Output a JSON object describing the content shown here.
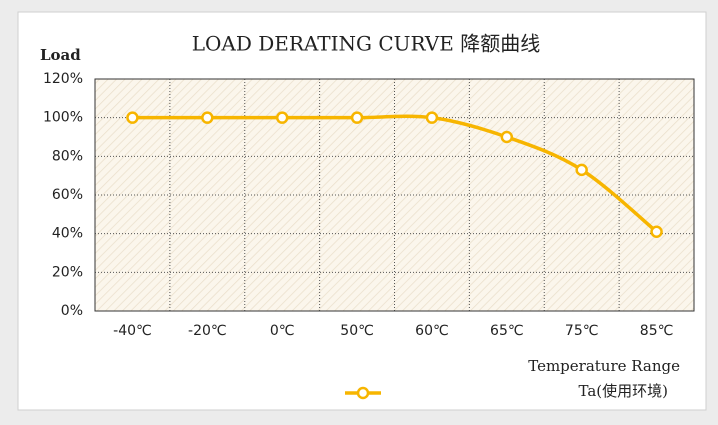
{
  "chart_data": {
    "type": "line",
    "title": "LOAD DERATING CURVE 降额曲线",
    "y_label": "Load",
    "x_label": [
      "Temperature Range",
      "Ta(使用环境)"
    ],
    "categories": [
      "-40℃",
      "-20℃",
      "0℃",
      "50℃",
      "60℃",
      "65℃",
      "75℃",
      "85℃"
    ],
    "series": [
      {
        "color": "#f7b500",
        "values": [
          100,
          100,
          100,
          100,
          100,
          90,
          73,
          41
        ]
      }
    ],
    "ylim": [
      0,
      120
    ],
    "yticks": [
      {
        "value": 0,
        "label": "0%"
      },
      {
        "value": 20,
        "label": "20%"
      },
      {
        "value": 40,
        "label": "40%"
      },
      {
        "value": 60,
        "label": "60%"
      },
      {
        "value": 80,
        "label": "80%"
      },
      {
        "value": 100,
        "label": "100%"
      },
      {
        "value": 120,
        "label": "120%"
      }
    ],
    "grid": true,
    "smooth": true
  }
}
